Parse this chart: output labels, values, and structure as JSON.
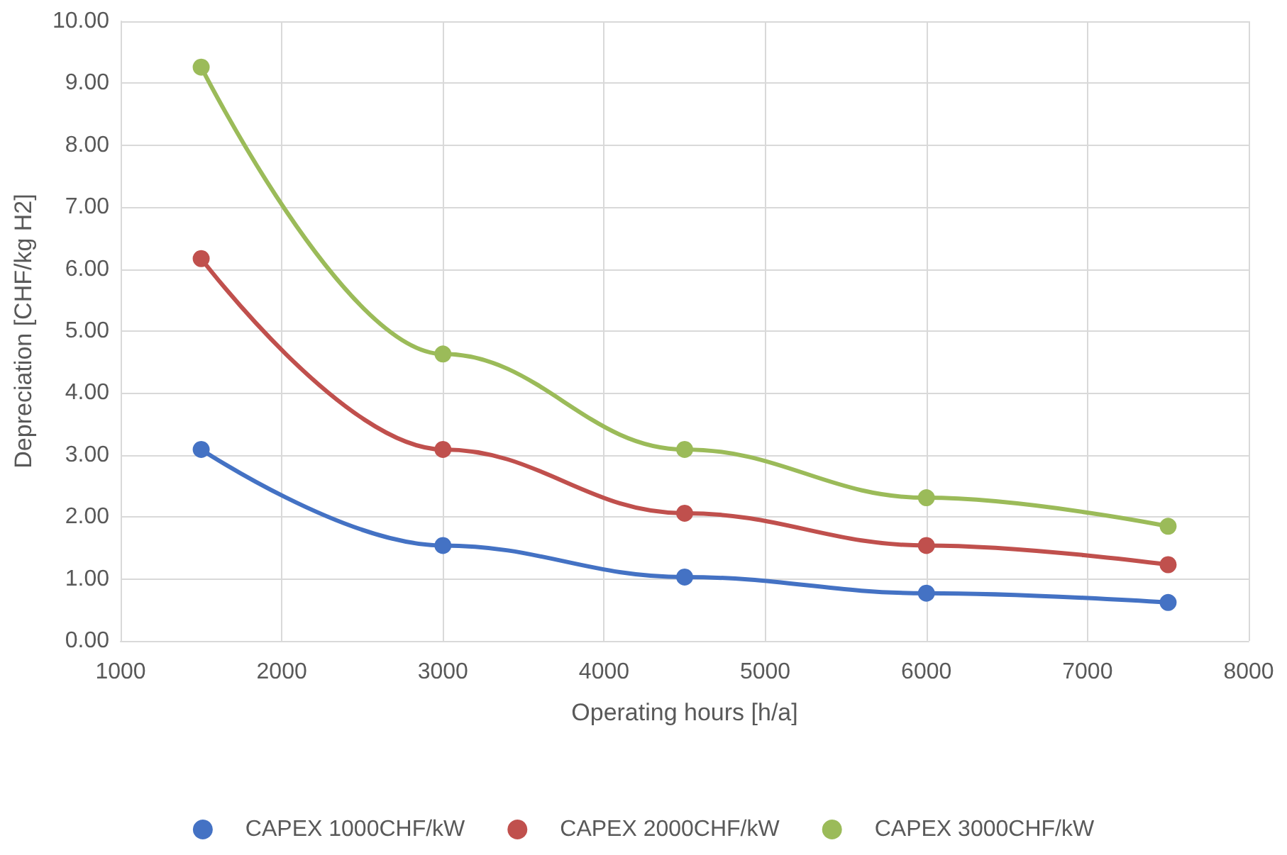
{
  "chart_data": {
    "type": "line",
    "xlabel": "Operating hours [h/a]",
    "ylabel": "Depreciation [CHF/kg H2]",
    "x": [
      1500,
      3000,
      4500,
      6000,
      7500
    ],
    "series": [
      {
        "name": "CAPEX 1000CHF/kW",
        "color": "#4472c4",
        "values": [
          3.09,
          1.54,
          1.03,
          0.77,
          0.62
        ]
      },
      {
        "name": "CAPEX 2000CHF/kW",
        "color": "#c0504d",
        "values": [
          6.17,
          3.09,
          2.06,
          1.54,
          1.23
        ]
      },
      {
        "name": "CAPEX 3000CHF/kW",
        "color": "#9bbb59",
        "values": [
          9.26,
          4.63,
          3.09,
          2.31,
          1.85
        ]
      }
    ],
    "xlim": [
      1000,
      8000
    ],
    "xticks": [
      1000,
      2000,
      3000,
      4000,
      5000,
      6000,
      7000,
      8000
    ],
    "ylim": [
      0,
      10
    ],
    "yticks": [
      {
        "value": 0,
        "label": "0.00"
      },
      {
        "value": 1,
        "label": "1.00"
      },
      {
        "value": 2,
        "label": "2.00"
      },
      {
        "value": 3,
        "label": "3.00"
      },
      {
        "value": 4,
        "label": "4.00"
      },
      {
        "value": 5,
        "label": "5.00"
      },
      {
        "value": 6,
        "label": "6.00"
      },
      {
        "value": 7,
        "label": "7.00"
      },
      {
        "value": 8,
        "label": "8.00"
      },
      {
        "value": 9,
        "label": "9.00"
      },
      {
        "value": 10,
        "label": "10.00"
      }
    ],
    "grid": true,
    "legend": "bottom",
    "marker": "circle",
    "line_style": "solid"
  }
}
